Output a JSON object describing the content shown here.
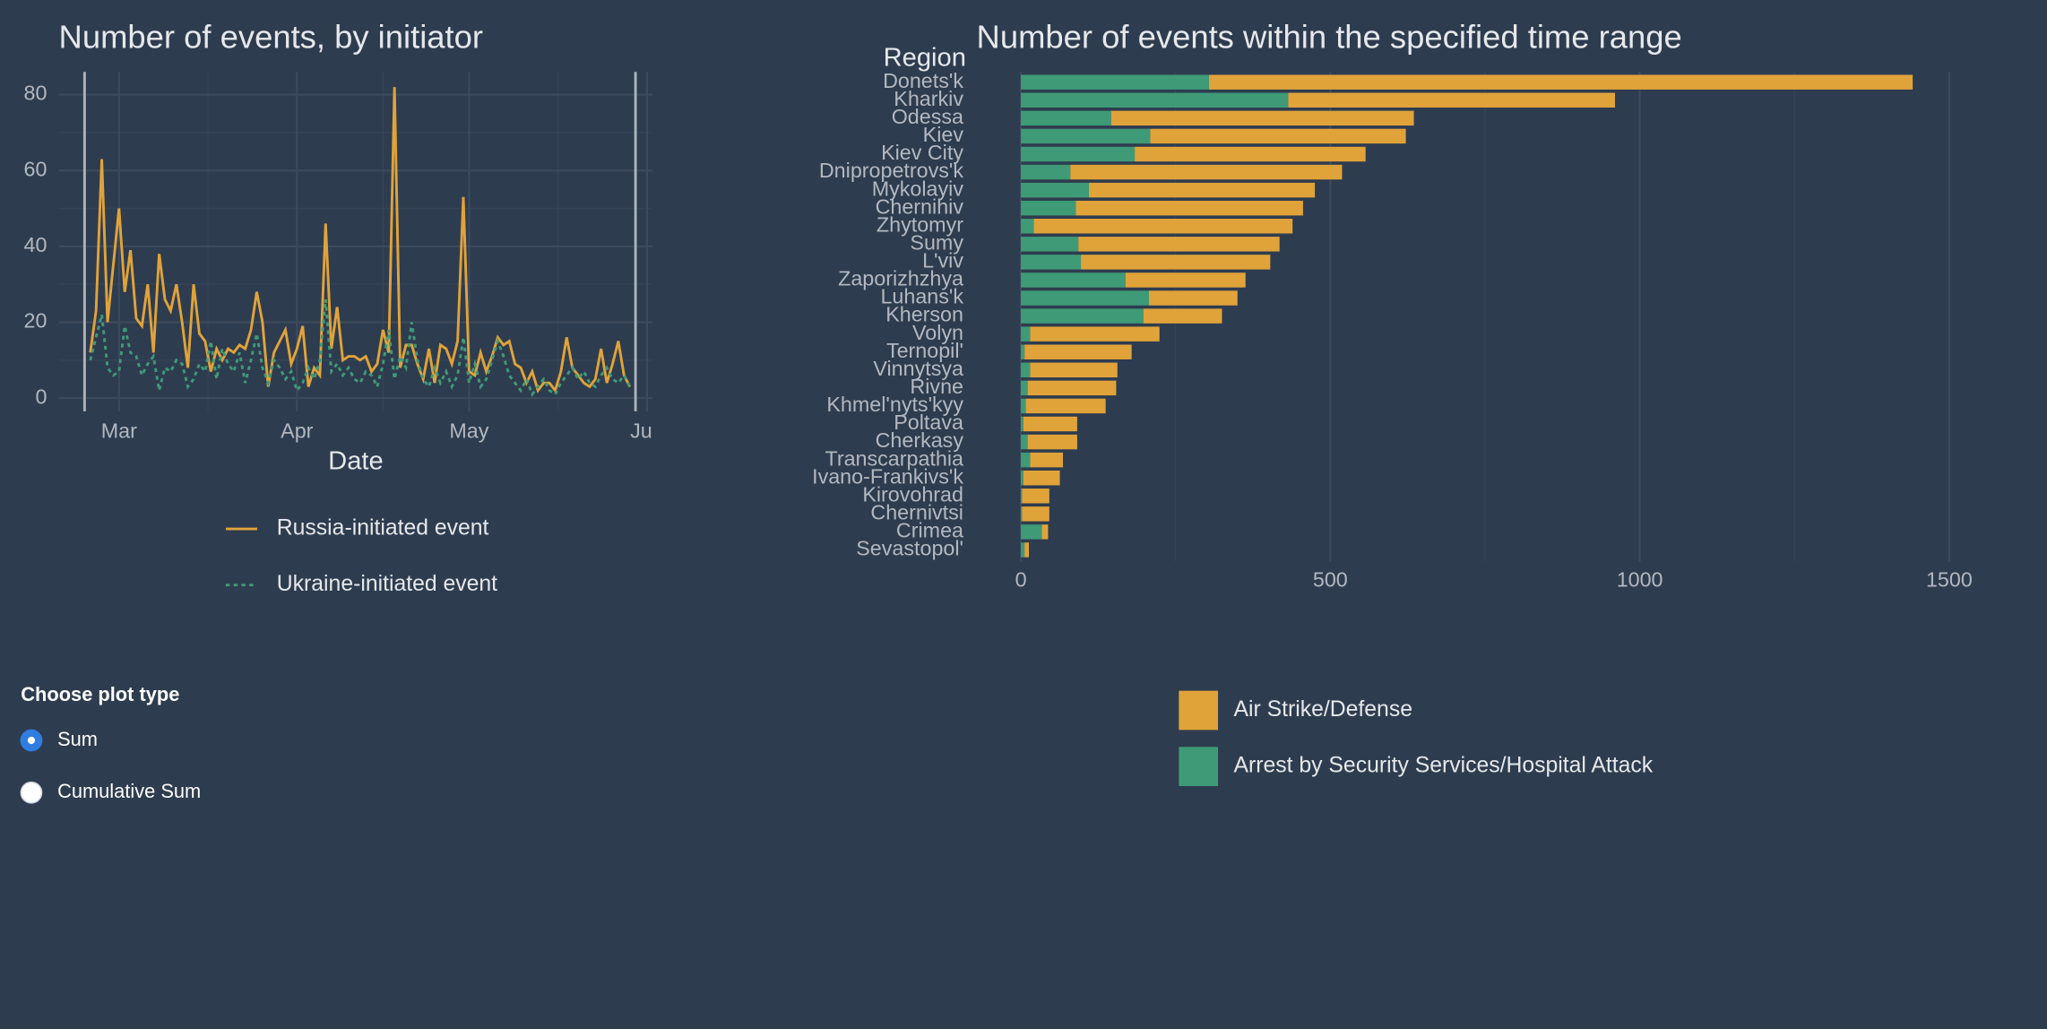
{
  "chart_data": [
    {
      "type": "line",
      "title": "Number of events, by initiator",
      "x_label": "Date",
      "x": [
        55,
        56,
        57,
        58,
        59,
        60,
        61,
        62,
        63,
        64,
        65,
        66,
        67,
        68,
        69,
        70,
        71,
        72,
        73,
        74,
        75,
        76,
        77,
        78,
        79,
        80,
        81,
        82,
        83,
        84,
        85,
        86,
        87,
        88,
        89,
        90,
        91,
        92,
        93,
        94,
        95,
        96,
        97,
        98,
        99,
        100,
        101,
        102,
        103,
        104,
        105,
        106,
        107,
        108,
        109,
        110,
        111,
        112,
        113,
        114,
        115,
        116,
        117,
        118,
        119,
        120,
        121,
        122,
        123,
        124,
        125,
        126,
        127,
        128,
        129,
        130,
        131,
        132,
        133,
        134,
        135,
        136,
        137,
        138,
        139,
        140,
        141,
        142,
        143,
        144,
        145,
        146,
        147,
        148,
        149
      ],
      "series": [
        {
          "name": "Russia-initiated event",
          "color": "#e0a33a",
          "line_style": "solid",
          "values": [
            12,
            23,
            63,
            20,
            35,
            50,
            28,
            39,
            21,
            19,
            30,
            12,
            38,
            26,
            23,
            30,
            20,
            8,
            30,
            17,
            15,
            7,
            13,
            10,
            13,
            12,
            14,
            13,
            18,
            28,
            20,
            3,
            12,
            15,
            18,
            9,
            13,
            19,
            3,
            8,
            6,
            46,
            13,
            24,
            10,
            11,
            11,
            10,
            11,
            7,
            9,
            18,
            12,
            82,
            8,
            14,
            14,
            9,
            5,
            13,
            4,
            14,
            13,
            9,
            15,
            53,
            7,
            6,
            12,
            7,
            11,
            16,
            14,
            15,
            9,
            8,
            4,
            7,
            2,
            4,
            4,
            2,
            7,
            16,
            8,
            6,
            4,
            3,
            5,
            13,
            4,
            9,
            15,
            6,
            3
          ]
        },
        {
          "name": "Ukraine-initiated event",
          "color": "#3f9a77",
          "line_style": "dotted",
          "values": [
            10,
            16,
            22,
            8,
            6,
            7,
            19,
            12,
            11,
            6,
            9,
            11,
            2,
            8,
            7,
            10,
            9,
            3,
            5,
            9,
            7,
            15,
            5,
            13,
            9,
            7,
            12,
            4,
            10,
            17,
            8,
            4,
            10,
            8,
            5,
            7,
            2,
            4,
            8,
            5,
            10,
            26,
            7,
            9,
            6,
            8,
            5,
            4,
            7,
            6,
            3,
            9,
            18,
            5,
            11,
            8,
            20,
            10,
            5,
            3,
            8,
            4,
            7,
            3,
            6,
            16,
            4,
            9,
            3,
            5,
            10,
            15,
            11,
            6,
            4,
            2,
            5,
            1,
            3,
            5,
            2,
            1,
            4,
            6,
            8,
            5,
            7,
            4,
            3,
            6,
            8,
            5,
            4,
            6,
            3
          ]
        }
      ],
      "xlim": [
        49.5,
        153
      ],
      "ylim": [
        -3.5,
        86
      ],
      "xticks": [
        {
          "value": 60,
          "label": "Mar"
        },
        {
          "value": 91,
          "label": "Apr"
        },
        {
          "value": 121,
          "label": "May"
        },
        {
          "value": 152,
          "label": "Jun"
        }
      ],
      "minor_xticks": [
        75.5,
        106,
        136.5
      ],
      "yticks": [
        0,
        20,
        40,
        60,
        80
      ],
      "minor_yticks": [
        10,
        30,
        50,
        70
      ],
      "range_markers": [
        54,
        150
      ],
      "grid": true,
      "legend": "bottom"
    },
    {
      "type": "bar",
      "orientation": "horizontal",
      "stacked": true,
      "title": "Number of events within the specified time range",
      "y_label": "Region",
      "categories": [
        "Donets'k",
        "Kharkiv",
        "Odessa",
        "Kiev",
        "Kiev City",
        "Dnipropetrovs'k",
        "Mykolayiv",
        "Chernihiv",
        "Zhytomyr",
        "Sumy",
        "L'viv",
        "Zaporizhzhya",
        "Luhans'k",
        "Kherson",
        "Volyn",
        "Ternopil'",
        "Vinnytsya",
        "Rivne",
        "Khmel'nyts'kyy",
        "Poltava",
        "Cherkasy",
        "Transcarpathia",
        "Ivano-Frankivs'k",
        "Kirovohrad",
        "Chernivtsi",
        "Crimea",
        "Sevastopol'"
      ],
      "series": [
        {
          "name": "Air Strike/Defense",
          "color": "#e0a33a",
          "values": [
            1137,
            528,
            489,
            413,
            373,
            439,
            365,
            367,
            418,
            325,
            306,
            194,
            143,
            127,
            209,
            173,
            141,
            143,
            129,
            87,
            80,
            53,
            59,
            44,
            44,
            10,
            7
          ]
        },
        {
          "name": "Arrest by Security Services/Hospital Attack",
          "color": "#3f9a77",
          "values": [
            304,
            432,
            146,
            209,
            184,
            80,
            110,
            89,
            21,
            93,
            97,
            169,
            207,
            198,
            15,
            6,
            15,
            11,
            8,
            4,
            11,
            15,
            4,
            2,
            2,
            34,
            6
          ]
        }
      ],
      "xlim": [
        -78,
        1658
      ],
      "xticks": [
        0,
        500,
        1000,
        1500
      ],
      "minor_xticks": [
        250,
        750,
        1250
      ],
      "grid": true,
      "legend": "bottom"
    }
  ],
  "controls": {
    "label": "Choose plot type",
    "options": [
      "Sum",
      "Cumulative Sum"
    ],
    "selected": 0
  }
}
